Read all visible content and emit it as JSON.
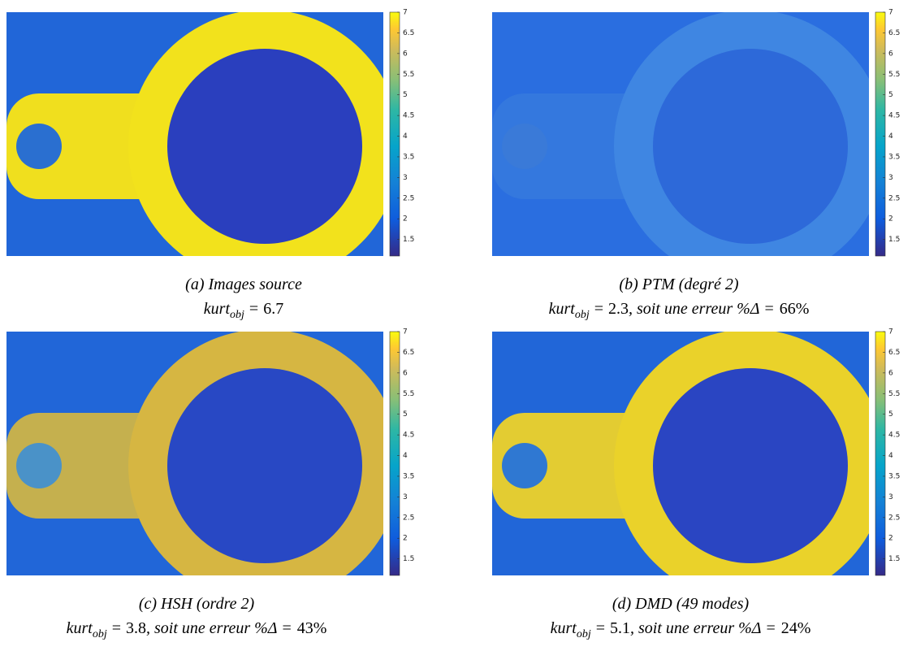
{
  "colorbar": {
    "range": [
      1.1,
      7
    ],
    "ticks": [
      1.5,
      2,
      2.5,
      3,
      3.5,
      4,
      4.5,
      5,
      5.5,
      6,
      6.5,
      7
    ]
  },
  "panels": [
    {
      "label": "(a) Images source",
      "metric": "kurt",
      "metric_sub": "obj",
      "equals": "=",
      "value": 6.7
    },
    {
      "label": "(b) PTM (degré 2)",
      "metric": "kurt",
      "metric_sub": "obj",
      "equals": "=",
      "value": 2.3,
      "error_prefix": ", soit une erreur %Δ =",
      "error": "66%"
    },
    {
      "label": "(c) HSH (ordre 2)",
      "metric": "kurt",
      "metric_sub": "obj",
      "equals": "=",
      "value": 3.8,
      "error_prefix": ", soit une erreur %Δ =",
      "error": "43%"
    },
    {
      "label": "(d) DMD (49 modes)",
      "metric": "kurt",
      "metric_sub": "obj",
      "equals": "=",
      "value": 5.1,
      "error_prefix": ", soit une erreur %Δ =",
      "error": "24%"
    }
  ]
}
